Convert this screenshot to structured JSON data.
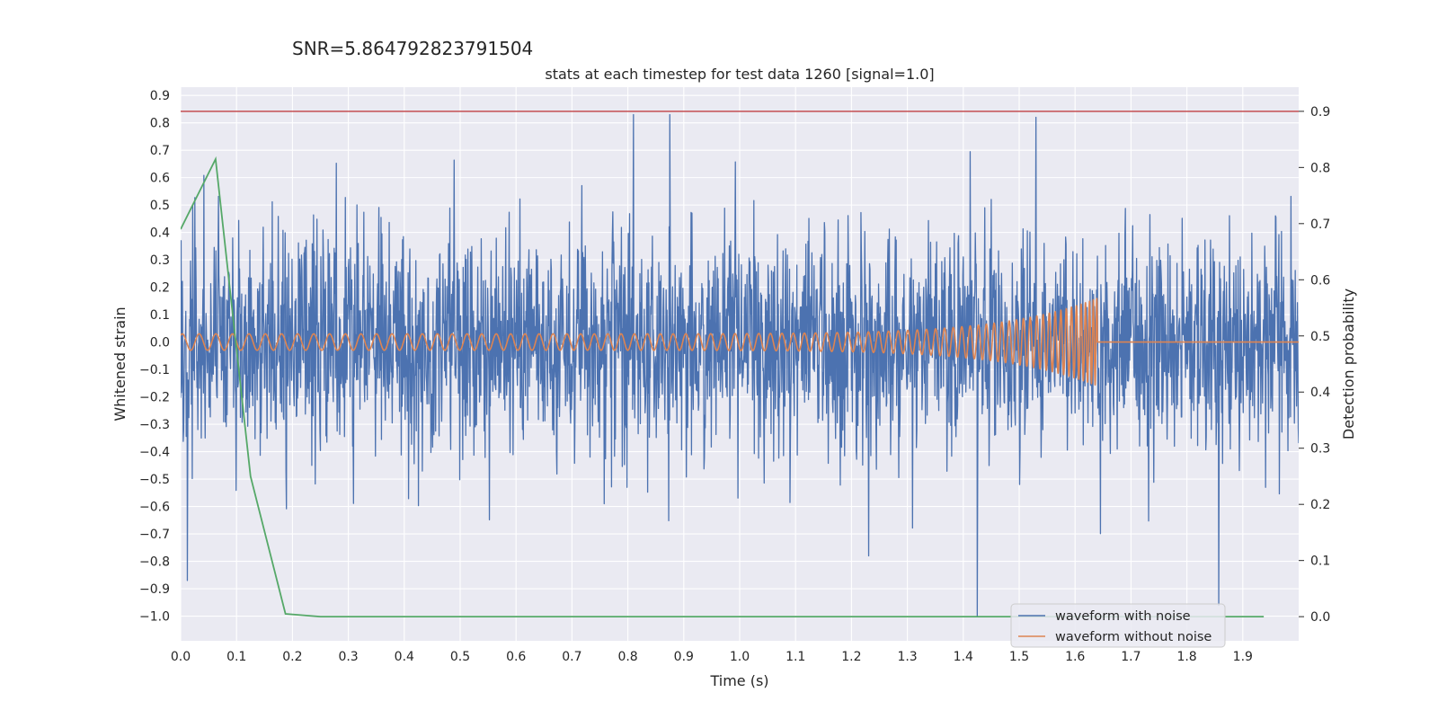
{
  "figure": {
    "suptitle": "SNR=5.864792823791504"
  },
  "chart_data": {
    "type": "line",
    "title": "stats at each timestep for test data 1260 [signal=1.0]",
    "xlabel": "Time (s)",
    "ylabel": "Whitened strain",
    "y2label": "Detection probability",
    "xlim": [
      0.0,
      2.0
    ],
    "ylim": [
      -1.09,
      0.93
    ],
    "y2lim": [
      -0.043,
      0.943
    ],
    "xticks": [
      "0.0",
      "0.1",
      "0.2",
      "0.3",
      "0.4",
      "0.5",
      "0.6",
      "0.7",
      "0.8",
      "0.9",
      "1.0",
      "1.1",
      "1.2",
      "1.3",
      "1.4",
      "1.5",
      "1.6",
      "1.7",
      "1.8",
      "1.9"
    ],
    "yticks": [
      "0.9",
      "0.8",
      "0.7",
      "0.6",
      "0.5",
      "0.4",
      "0.3",
      "0.2",
      "0.1",
      "0.0",
      "−0.1",
      "−0.2",
      "−0.3",
      "−0.4",
      "−0.5",
      "−0.6",
      "−0.7",
      "−0.8",
      "−0.9",
      "−1.0"
    ],
    "y2ticks": [
      "0.9",
      "0.8",
      "0.7",
      "0.6",
      "0.5",
      "0.4",
      "0.3",
      "0.2",
      "0.1",
      "0.0"
    ],
    "grid": true,
    "legend_position": "lower-right",
    "colors": {
      "noisy": "#4c72b0",
      "clean": "#dd8452",
      "probability": "#55a868",
      "threshold": "#c44e52",
      "background": "#eaeaf2",
      "grid": "#ffffff"
    },
    "series": [
      {
        "name": "waveform with noise",
        "axis": "left",
        "kind": "noise",
        "amplitude_std": 0.2,
        "notable_peaks": [
          {
            "x": 0.012,
            "y": -0.87
          },
          {
            "x": 0.81,
            "y": 0.83
          },
          {
            "x": 0.875,
            "y": 0.83
          },
          {
            "x": 1.425,
            "y": -1.0
          },
          {
            "x": 1.53,
            "y": 0.82
          },
          {
            "x": 1.857,
            "y": -0.96
          }
        ]
      },
      {
        "name": "waveform without noise",
        "axis": "left",
        "kind": "chirp",
        "merger_time": 1.64,
        "start_amplitude": 0.03,
        "peak_amplitude": 0.16
      },
      {
        "name": "",
        "axis": "right",
        "kind": "probability",
        "x": [
          0.0,
          0.0625,
          0.125,
          0.1875,
          0.25,
          0.5,
          1.0,
          1.5,
          1.9375
        ],
        "y": [
          0.69,
          0.815,
          0.25,
          0.005,
          0.0,
          0.0,
          0.0,
          0.0,
          0.0
        ]
      },
      {
        "name": "",
        "axis": "right",
        "kind": "threshold",
        "y": 0.9
      }
    ]
  }
}
